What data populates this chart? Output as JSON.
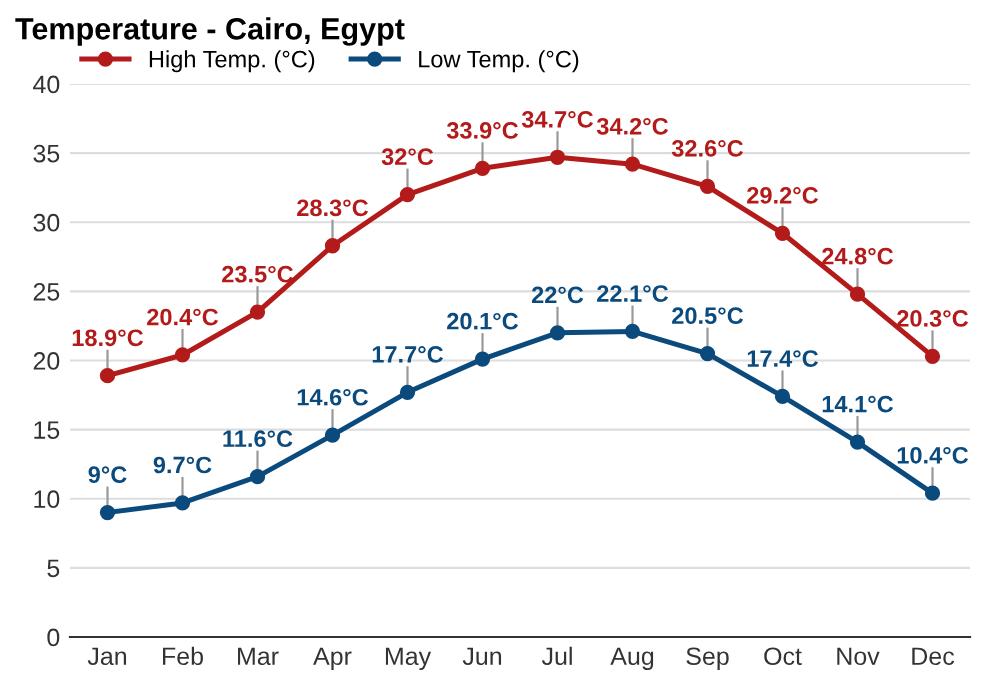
{
  "chart_data": {
    "type": "line",
    "title": "Temperature - Cairo, Egypt",
    "categories": [
      "Jan",
      "Feb",
      "Mar",
      "Apr",
      "May",
      "Jun",
      "Jul",
      "Aug",
      "Sep",
      "Oct",
      "Nov",
      "Dec"
    ],
    "series": [
      {
        "name": "High Temp. (°C)",
        "color": "#b31b1b",
        "values": [
          18.9,
          20.4,
          23.5,
          28.3,
          32,
          33.9,
          34.7,
          34.2,
          32.6,
          29.2,
          24.8,
          20.3
        ],
        "value_labels": [
          "18.9°C",
          "20.4°C",
          "23.5°C",
          "28.3°C",
          "32°C",
          "33.9°C",
          "34.7°C",
          "34.2°C",
          "32.6°C",
          "29.2°C",
          "24.8°C",
          "20.3°C"
        ]
      },
      {
        "name": "Low Temp. (°C)",
        "color": "#0b4a7d",
        "values": [
          9,
          9.7,
          11.6,
          14.6,
          17.7,
          20.1,
          22,
          22.1,
          20.5,
          17.4,
          14.1,
          10.4
        ],
        "value_labels": [
          "9°C",
          "9.7°C",
          "11.6°C",
          "14.6°C",
          "17.7°C",
          "20.1°C",
          "22°C",
          "22.1°C",
          "20.5°C",
          "17.4°C",
          "14.1°C",
          "10.4°C"
        ]
      }
    ],
    "ylim": [
      0,
      40
    ],
    "yticks": [
      0,
      5,
      10,
      15,
      20,
      25,
      30,
      35,
      40
    ],
    "grid": "y",
    "legend": "top left",
    "marker": "circle",
    "line_style": "solid"
  }
}
